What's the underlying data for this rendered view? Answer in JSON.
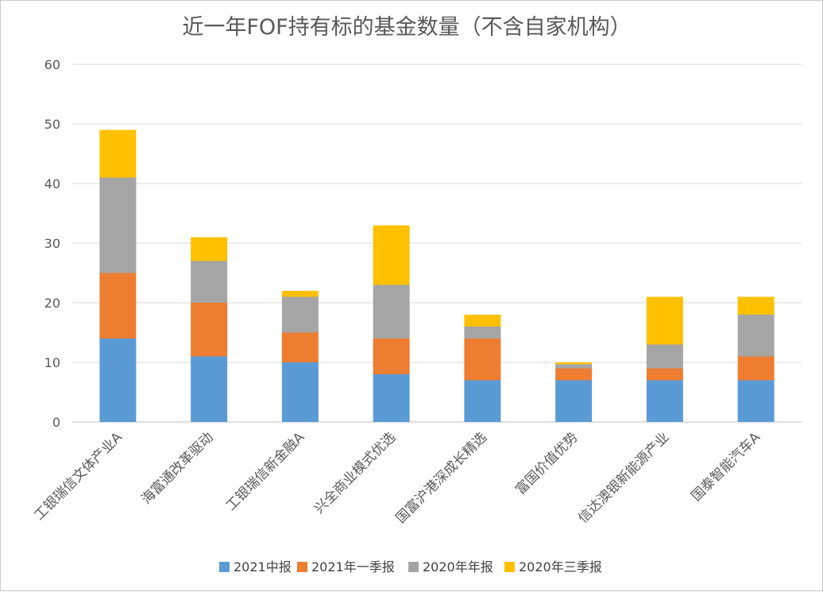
{
  "chart_data": {
    "type": "bar",
    "stacked": true,
    "title": "近一年FOF持有标的基金数量（不含自家机构）",
    "categories": [
      "工银瑞信文体产业A",
      "海富通改革驱动",
      "工银瑞信新金融A",
      "兴全商业模式优选",
      "国富沪港深成长精选",
      "富国价值优势",
      "信达澳银新能源产业",
      "国泰智能汽车A"
    ],
    "series": [
      {
        "name": "2021中报",
        "color": "#5b9bd5",
        "values": [
          14,
          11,
          10,
          8,
          7,
          7,
          7,
          7
        ]
      },
      {
        "name": "2021年一季报",
        "color": "#ed7d31",
        "values": [
          11,
          9,
          5,
          6,
          7,
          2,
          2,
          4
        ]
      },
      {
        "name": "2020年年报",
        "color": "#a5a5a5",
        "values": [
          16,
          7,
          6,
          9,
          2,
          0.7,
          4,
          7
        ]
      },
      {
        "name": "2020年三季报",
        "color": "#ffc000",
        "values": [
          8,
          4,
          1,
          10,
          2,
          0.3,
          8,
          3
        ]
      }
    ],
    "ylim": [
      0,
      60
    ],
    "yticks": [
      "0",
      "10",
      "20",
      "30",
      "40",
      "50",
      "60"
    ],
    "grid": true,
    "legend_position": "bottom"
  }
}
